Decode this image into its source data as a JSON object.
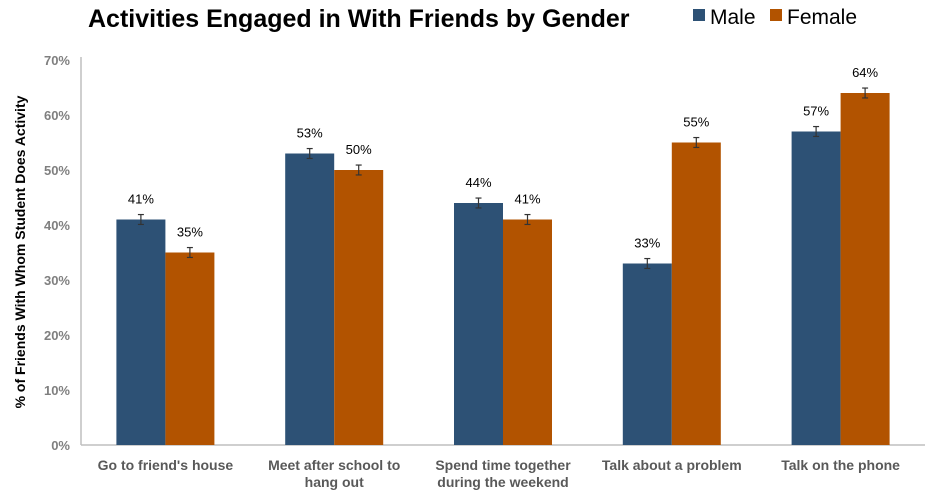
{
  "chart_data": {
    "type": "bar",
    "title": "Activities Engaged in With Friends by Gender",
    "ylabel": "% of Friends With Whom Student Does Activity",
    "xlabel": "",
    "categories": [
      [
        "Go to friend's house"
      ],
      [
        "Meet after school to",
        "hang out"
      ],
      [
        "Spend time together",
        "during the weekend"
      ],
      [
        "Talk about a problem"
      ],
      [
        "Talk on the phone"
      ]
    ],
    "series": [
      {
        "name": "Male",
        "color": "#2d5175",
        "values": [
          41,
          53,
          44,
          33,
          57
        ],
        "labels": [
          "41%",
          "53%",
          "44%",
          "33%",
          "57%"
        ]
      },
      {
        "name": "Female",
        "color": "#b25300",
        "values": [
          35,
          50,
          41,
          55,
          64
        ],
        "labels": [
          "35%",
          "50%",
          "41%",
          "55%",
          "64%"
        ]
      }
    ],
    "error_bars": true,
    "ylim": [
      0,
      70
    ],
    "yticks": [
      "0%",
      "10%",
      "20%",
      "30%",
      "40%",
      "50%",
      "60%",
      "70%"
    ],
    "grid": false,
    "legend": "top-right"
  }
}
